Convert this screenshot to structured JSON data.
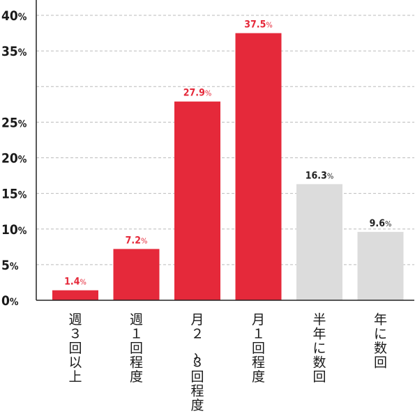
{
  "chart_data": {
    "type": "bar",
    "categories": [
      "週３回以上",
      "週１回程度",
      "月２〜３回程度",
      "月１回程度",
      "半年に数回",
      "年に数回"
    ],
    "values": [
      1.4,
      7.2,
      27.9,
      37.5,
      16.3,
      9.6
    ],
    "value_labels": [
      "1.4",
      "7.2",
      "27.9",
      "37.5",
      "16.3",
      "9.6"
    ],
    "value_unit": "%",
    "y_ticks": [
      "0",
      "5",
      "10",
      "15",
      "20",
      "25",
      "35",
      "40"
    ],
    "y_tick_values": [
      0,
      5,
      10,
      15,
      20,
      25,
      35,
      40
    ],
    "y_tick_unit": "%",
    "ylim": [
      0,
      40
    ],
    "grid": "dashed horizontal",
    "legend": "none",
    "colors": {
      "highlight": "#e5293a",
      "muted": "#dcdcdc",
      "muted_label": "#222222",
      "axis": "#222222",
      "grid": "#bbbbbb"
    },
    "bar_colors": [
      "highlight",
      "highlight",
      "highlight",
      "highlight",
      "muted",
      "muted"
    ]
  }
}
